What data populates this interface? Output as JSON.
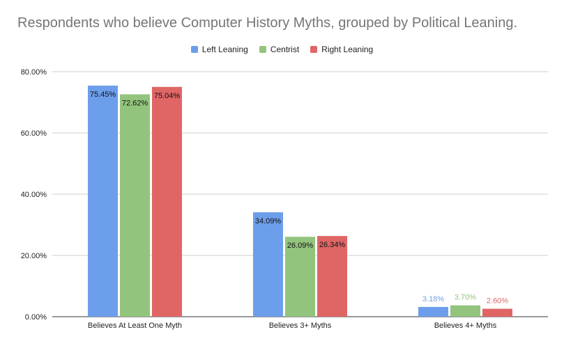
{
  "chart_data": {
    "type": "bar",
    "title": "Respondents who believe Computer History Myths, grouped by Political Leaning.",
    "categories": [
      "Believes At Least One Myth",
      "Believes 3+ Myths",
      "Believes 4+ Myths"
    ],
    "series": [
      {
        "name": "Left Leaning",
        "color": "#6d9eeb",
        "values": [
          75.45,
          34.09,
          3.18
        ],
        "labels": [
          "75.45%",
          "34.09%",
          "3.18%"
        ]
      },
      {
        "name": "Centrist",
        "color": "#93c47d",
        "values": [
          72.62,
          26.09,
          3.7
        ],
        "labels": [
          "72.62%",
          "26.09%",
          "3.70%"
        ]
      },
      {
        "name": "Right Leaning",
        "color": "#e06666",
        "values": [
          75.04,
          26.34,
          2.6
        ],
        "labels": [
          "75.04%",
          "26.34%",
          "2.60%"
        ]
      }
    ],
    "ylim": [
      0,
      80
    ],
    "yticks": [
      "0.00%",
      "20.00%",
      "40.00%",
      "60.00%",
      "80.00%"
    ],
    "ytick_values": [
      0,
      20,
      40,
      60,
      80
    ],
    "grid": true,
    "legend_position": "top-center"
  }
}
